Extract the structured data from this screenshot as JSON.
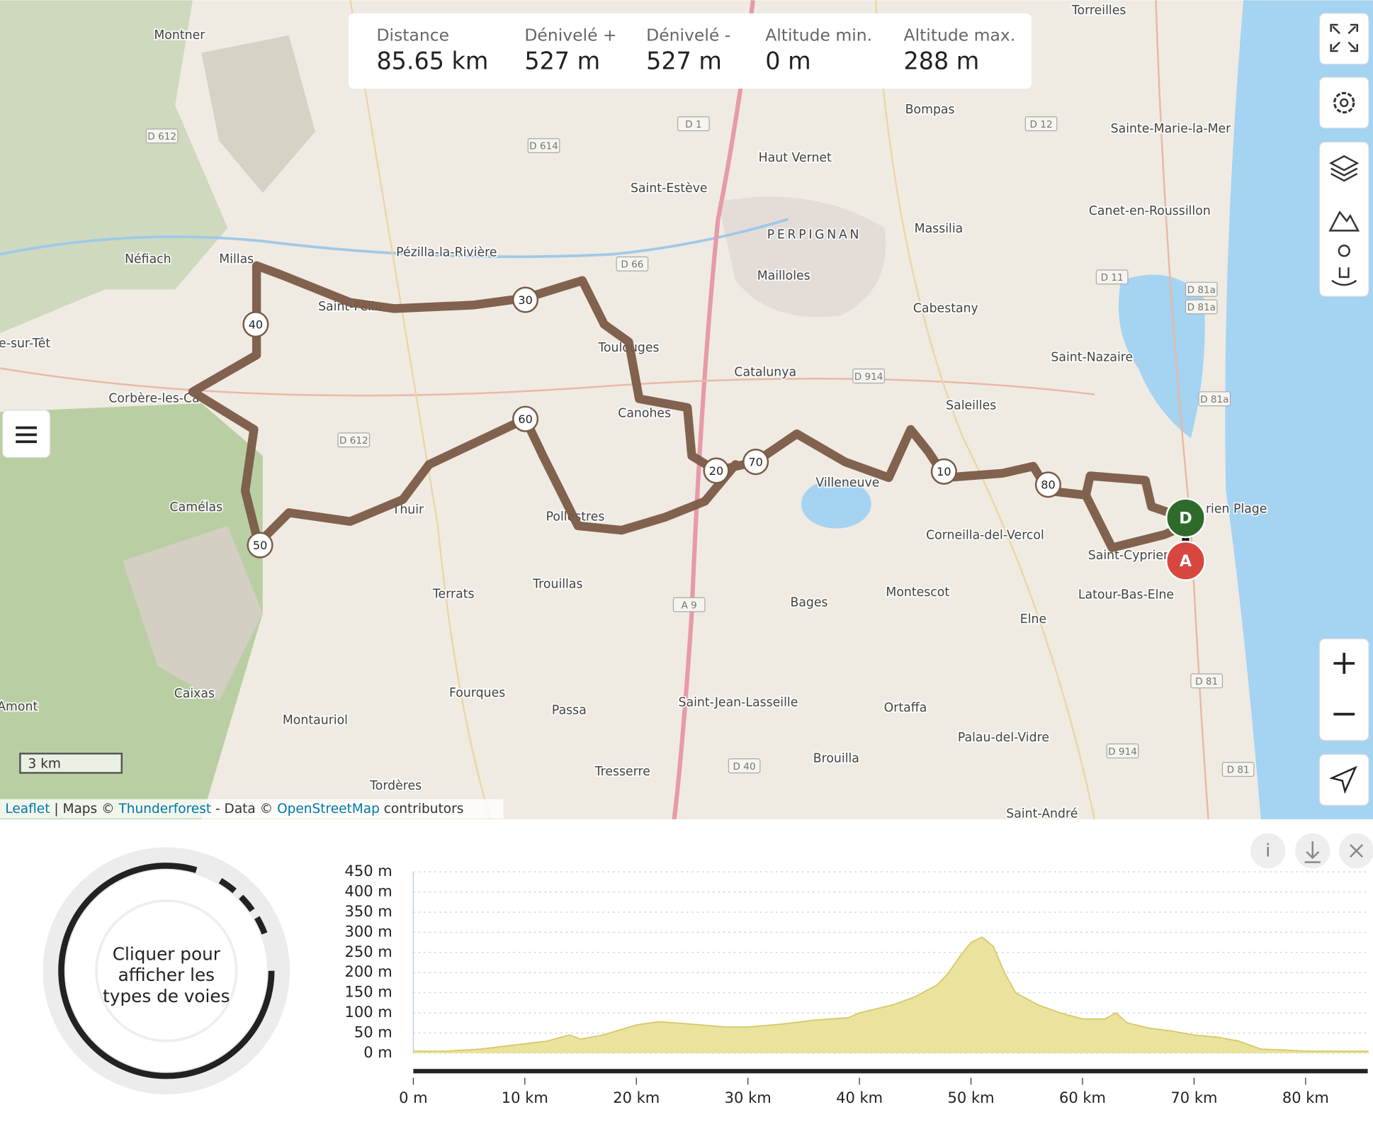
{
  "stats": [
    {
      "label": "Distance",
      "value": "85.65 km"
    },
    {
      "label": "Dénivelé +",
      "value": "527 m"
    },
    {
      "label": "Dénivelé -",
      "value": "527 m"
    },
    {
      "label": "Altitude min.",
      "value": "0 m"
    },
    {
      "label": "Altitude max.",
      "value": "288 m"
    }
  ],
  "map": {
    "places": [
      "Montner",
      "Néfiach",
      "Millas",
      "Pézilla-la-Rivière",
      "Saint-Estève",
      "Haut Vernet",
      "PERPIGNAN",
      "Bompas",
      "Sainte-Marie-la-Mer",
      "Canet-en-Roussillon",
      "Torreilles",
      "Massilia",
      "Mailloles",
      "Cabestany",
      "Catalunya",
      "Saint-Nazaire",
      "Saleilles",
      "Corbère-les-Ca",
      "Camélas",
      "Thuir",
      "Canohes",
      "Toulouges",
      "Villeneuve",
      "Corneilla-del-Vercol",
      "Montescot",
      "Bages",
      "Terrats",
      "Trouillas",
      "Elne",
      "Latour-Bas-Elne",
      "Saint-Cyprien",
      "Caixas",
      "Fourques",
      "Passa",
      "Saint-Jean-Lasseille",
      "Ortaffa",
      "Palau-del-Vidre",
      "Brouilla",
      "Montauriol",
      "Tresserre",
      "Tordères",
      "Saint-André",
      "e-sur-Têt",
      "Amont",
      "rien Plage",
      "Saint-Féliu",
      "Pollestres"
    ],
    "roads": [
      "D 612",
      "D 614",
      "D 1",
      "D 12",
      "D 66",
      "D 914",
      "A 9",
      "D 11",
      "D 81a",
      "D 81a",
      "D 81a",
      "D 612",
      "D 81",
      "D 914",
      "D 40",
      "D 81"
    ],
    "km_markers": [
      "10",
      "20",
      "30",
      "40",
      "50",
      "60",
      "70",
      "80"
    ],
    "start": "D",
    "end": "A",
    "scale": "3 km",
    "attribution": [
      "Leaflet",
      " | Maps © ",
      "Thunderforest",
      " - Data © ",
      "OpenStreetMap",
      " contributors"
    ]
  },
  "donut": {
    "lines": [
      "Cliquer pour",
      "afficher les",
      "types de voies"
    ]
  },
  "chart_data": {
    "type": "area",
    "x": [
      0,
      3,
      6,
      9,
      12,
      14,
      15,
      17,
      20,
      22,
      25,
      28,
      30,
      33,
      36,
      39,
      40,
      43,
      45,
      47,
      48,
      49,
      50,
      51,
      52,
      53,
      54,
      56,
      58,
      60,
      62,
      63,
      64,
      66,
      68,
      70,
      72,
      74,
      75,
      76,
      78,
      80,
      83,
      85.65
    ],
    "values": [
      5,
      5,
      10,
      20,
      30,
      45,
      35,
      45,
      70,
      78,
      72,
      65,
      65,
      72,
      82,
      88,
      100,
      120,
      140,
      170,
      200,
      240,
      275,
      288,
      265,
      200,
      150,
      120,
      100,
      85,
      85,
      100,
      75,
      62,
      55,
      45,
      40,
      30,
      20,
      10,
      8,
      5,
      5,
      5
    ],
    "color": "#e9e39e",
    "xlim": [
      0,
      85.65
    ],
    "ylim": [
      0,
      450
    ],
    "xticks": [
      {
        "value": 0,
        "label": "0 m"
      },
      {
        "value": 10,
        "label": "10 km"
      },
      {
        "value": 20,
        "label": "20 km"
      },
      {
        "value": 30,
        "label": "30 km"
      },
      {
        "value": 40,
        "label": "40 km"
      },
      {
        "value": 50,
        "label": "50 km"
      },
      {
        "value": 60,
        "label": "60 km"
      },
      {
        "value": 70,
        "label": "70 km"
      },
      {
        "value": 80,
        "label": "80 km"
      }
    ],
    "yticks": [
      {
        "value": 0,
        "label": "0 m"
      },
      {
        "value": 50,
        "label": "50 m"
      },
      {
        "value": 100,
        "label": "100 m"
      },
      {
        "value": 150,
        "label": "150 m"
      },
      {
        "value": 200,
        "label": "200 m"
      },
      {
        "value": 250,
        "label": "250 m"
      },
      {
        "value": 300,
        "label": "300 m"
      },
      {
        "value": 350,
        "label": "350 m"
      },
      {
        "value": 400,
        "label": "400 m"
      },
      {
        "value": 450,
        "label": "450 m"
      }
    ],
    "grid": true
  }
}
